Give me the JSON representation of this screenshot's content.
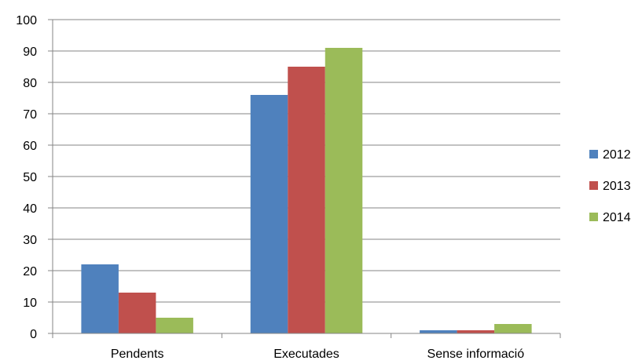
{
  "chart_data": {
    "type": "bar",
    "title": "",
    "xlabel": "",
    "ylabel": "",
    "categories": [
      "Pendents",
      "Executades",
      "Sense informació"
    ],
    "series": [
      {
        "name": "2012",
        "values": [
          22,
          76,
          1
        ],
        "color": "#4F81BD"
      },
      {
        "name": "2013",
        "values": [
          13,
          85,
          1
        ],
        "color": "#C0504D"
      },
      {
        "name": "2014",
        "values": [
          5,
          91,
          3
        ],
        "color": "#9BBB59"
      }
    ],
    "ylim": [
      0,
      100
    ],
    "yticks": [
      0,
      10,
      20,
      30,
      40,
      50,
      60,
      70,
      80,
      90,
      100
    ],
    "grid": true,
    "legend_position": "right"
  }
}
